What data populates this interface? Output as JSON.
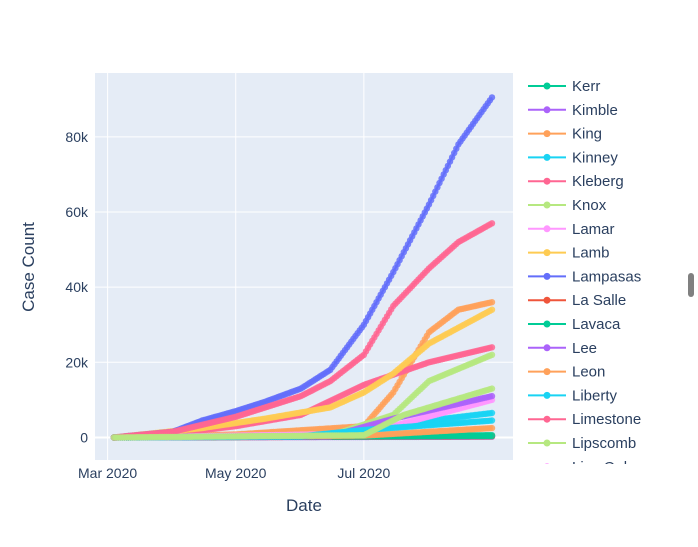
{
  "chart_data": {
    "type": "line",
    "title": "",
    "xlabel": "Date",
    "ylabel": "Case Count",
    "x_ticks": [
      "Mar 2020",
      "May 2020",
      "Jul 2020"
    ],
    "y_ticks": [
      "0",
      "20k",
      "40k",
      "60k",
      "80k"
    ],
    "xlim": [
      "2020-02-24",
      "2020-09-10"
    ],
    "ylim": [
      -6000,
      97000
    ],
    "grid": true,
    "legend_position": "right",
    "legend_clipped_entry": "Live Oak",
    "series": [
      {
        "name": "Kerr",
        "color": "#00cc96",
        "x": [
          "2020-03-04",
          "2020-08-31"
        ],
        "y": [
          0,
          600
        ]
      },
      {
        "name": "Kimble",
        "color": "#ab63fa",
        "x": [
          "2020-03-04",
          "2020-08-31"
        ],
        "y": [
          0,
          200
        ]
      },
      {
        "name": "King",
        "color": "#ffa15a",
        "x": [
          "2020-03-04",
          "2020-05-01",
          "2020-07-01",
          "2020-07-15",
          "2020-08-01",
          "2020-08-15",
          "2020-08-31"
        ],
        "y": [
          0,
          800,
          3000,
          12000,
          28000,
          34000,
          36000
        ]
      },
      {
        "name": "Kinney",
        "color": "#19d3f3",
        "x": [
          "2020-03-04",
          "2020-06-01",
          "2020-07-01",
          "2020-08-01",
          "2020-08-31"
        ],
        "y": [
          0,
          200,
          1500,
          4500,
          6500
        ]
      },
      {
        "name": "Kleberg",
        "color": "#ff6692",
        "x": [
          "2020-03-04",
          "2020-04-01",
          "2020-05-01",
          "2020-06-01",
          "2020-07-01",
          "2020-08-01",
          "2020-08-31"
        ],
        "y": [
          0,
          1000,
          3000,
          6000,
          14000,
          20000,
          24000
        ]
      },
      {
        "name": "Knox",
        "color": "#b6e880",
        "x": [
          "2020-03-04",
          "2020-06-15",
          "2020-07-15",
          "2020-08-01",
          "2020-08-31"
        ],
        "y": [
          0,
          500,
          6000,
          15000,
          22000
        ]
      },
      {
        "name": "Lamar",
        "color": "#ff97ff",
        "x": [
          "2020-03-04",
          "2020-07-01",
          "2020-08-31"
        ],
        "y": [
          0,
          1000,
          10000
        ]
      },
      {
        "name": "Lamb",
        "color": "#fecb52",
        "x": [
          "2020-03-04",
          "2020-04-15",
          "2020-05-15",
          "2020-06-15",
          "2020-07-01",
          "2020-07-15",
          "2020-08-01",
          "2020-08-31"
        ],
        "y": [
          0,
          2500,
          5000,
          8000,
          12000,
          17000,
          25000,
          34000
        ]
      },
      {
        "name": "Lampasas",
        "color": "#636efa",
        "x": [
          "2020-03-04",
          "2020-04-01",
          "2020-04-15",
          "2020-05-01",
          "2020-05-15",
          "2020-06-01",
          "2020-06-15",
          "2020-07-01",
          "2020-07-15",
          "2020-08-01",
          "2020-08-15",
          "2020-08-31"
        ],
        "y": [
          0,
          1500,
          4500,
          7000,
          9500,
          13000,
          18000,
          30000,
          44000,
          62000,
          78000,
          90500
        ]
      },
      {
        "name": "La Salle",
        "color": "#ef553b",
        "x": [
          "2020-03-04",
          "2020-08-31"
        ],
        "y": [
          0,
          300
        ]
      },
      {
        "name": "Lavaca",
        "color": "#00cc96",
        "x": [
          "2020-03-04",
          "2020-08-31"
        ],
        "y": [
          0,
          400
        ]
      },
      {
        "name": "Lee",
        "color": "#ab63fa",
        "x": [
          "2020-03-04",
          "2020-06-15",
          "2020-07-15",
          "2020-08-31"
        ],
        "y": [
          0,
          300,
          5000,
          11000
        ]
      },
      {
        "name": "Leon",
        "color": "#ffa15a",
        "x": [
          "2020-03-04",
          "2020-07-01",
          "2020-08-31"
        ],
        "y": [
          0,
          500,
          2500
        ]
      },
      {
        "name": "Liberty",
        "color": "#19d3f3",
        "x": [
          "2020-03-04",
          "2020-06-01",
          "2020-07-01",
          "2020-08-31"
        ],
        "y": [
          0,
          300,
          2000,
          4500
        ]
      },
      {
        "name": "Limestone",
        "color": "#ff6692",
        "x": [
          "2020-03-04",
          "2020-04-01",
          "2020-05-01",
          "2020-06-01",
          "2020-06-15",
          "2020-07-01",
          "2020-07-15",
          "2020-08-01",
          "2020-08-15",
          "2020-08-31"
        ],
        "y": [
          0,
          1500,
          5500,
          11000,
          15000,
          22000,
          35000,
          45000,
          52000,
          57000
        ]
      },
      {
        "name": "Lipscomb",
        "color": "#b6e880",
        "x": [
          "2020-03-04",
          "2020-07-01",
          "2020-07-20",
          "2020-08-31"
        ],
        "y": [
          0,
          600,
          6000,
          13000
        ]
      }
    ]
  }
}
